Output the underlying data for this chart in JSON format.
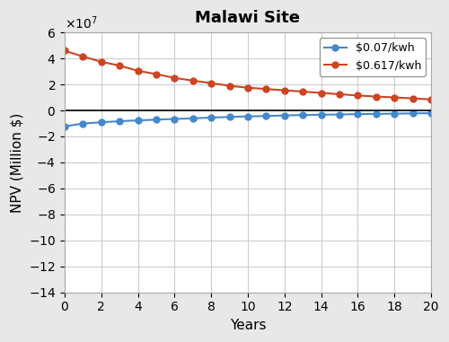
{
  "title": "Malawi Site",
  "xlabel": "Years",
  "ylabel": "NPV (Million $)",
  "xlim": [
    0,
    20
  ],
  "ylim": [
    -140000000.0,
    60000000.0
  ],
  "yticks": [
    -140000000.0,
    -120000000.0,
    -100000000.0,
    -80000000.0,
    -60000000.0,
    -40000000.0,
    -20000000.0,
    0,
    20000000.0,
    40000000.0,
    60000000.0
  ],
  "xticks": [
    0,
    2,
    4,
    6,
    8,
    10,
    12,
    14,
    16,
    18,
    20
  ],
  "years": [
    0,
    1,
    2,
    3,
    4,
    5,
    6,
    7,
    8,
    9,
    10,
    11,
    12,
    13,
    14,
    15,
    16,
    17,
    18,
    19,
    20
  ],
  "low_tariff": [
    -12300000,
    -10100000,
    -9100000,
    -8300000,
    -7650000,
    -7100000,
    -6550000,
    -6100000,
    -5500000,
    -5000000,
    -4550000,
    -4300000,
    -3850000,
    -3550000,
    -3300000,
    -3100000,
    -2800000,
    -2650000,
    -2450000,
    -2250000,
    -2100000
  ],
  "high_tariff": [
    46000000,
    41500000,
    37500000,
    34500000,
    30500000,
    28000000,
    25000000,
    23000000,
    21000000,
    19000000,
    17500000,
    16500000,
    15500000,
    14500000,
    13500000,
    12500000,
    11500000,
    10700000,
    10000000,
    9300000,
    8500000
  ],
  "low_color": "#4488cc",
  "high_color": "#cc4422",
  "bg_color": "#e8e8e8",
  "plot_bg_color": "#ffffff",
  "low_label": "$0.07/kwh",
  "high_label": "$0.617/kwh",
  "marker": "o",
  "markersize": 5,
  "linewidth": 1.5,
  "title_fontsize": 13,
  "label_fontsize": 11,
  "tick_fontsize": 10
}
